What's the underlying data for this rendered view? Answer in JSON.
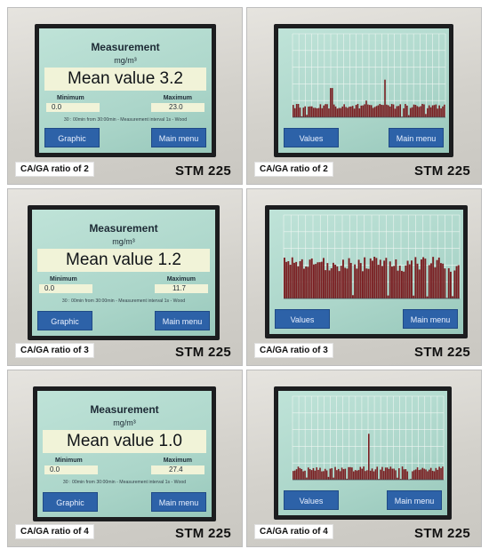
{
  "panels": [
    {
      "kind": "measurement",
      "title": "Measurement",
      "unit": "mg/m³",
      "mean": "Mean value 3.2",
      "min_label": "Minimum",
      "min_value": "0.0",
      "max_label": "Maximum",
      "max_value": "23.0",
      "info": "30 : 00min from 30:00min - Measurement interval 1s - Wood",
      "left_button": "Graphic",
      "right_button": "Main menu",
      "caption": "CA/GA ratio of 2",
      "model": "STM 225"
    },
    {
      "kind": "graph",
      "left_button": "Values",
      "right_button": "Main menu",
      "caption": "CA/GA ratio of 2",
      "model": "STM 225",
      "chart_data": {
        "type": "bar",
        "bar_levels": "low",
        "spike_positions": [
          0.25,
          0.48,
          0.6
        ],
        "spike_heights": [
          0.35,
          0.2,
          0.45
        ]
      }
    },
    {
      "kind": "measurement",
      "title": "Measurement",
      "unit": "mg/m³",
      "mean": "Mean value 1.2",
      "min_label": "Minimum",
      "min_value": "0.0",
      "max_label": "Maximum",
      "max_value": "11.7",
      "info": "30 : 00min from 30:00min - Measurement interval 1s - Wood",
      "left_button": "Graphic",
      "right_button": "Main menu",
      "caption": "CA/GA ratio of 3",
      "model": "STM 225"
    },
    {
      "kind": "graph",
      "left_button": "Values",
      "right_button": "Main menu",
      "caption": "CA/GA ratio of 3",
      "model": "STM 225",
      "chart_data": {
        "type": "bar",
        "bar_levels": "high",
        "spike_positions": [],
        "spike_heights": []
      }
    },
    {
      "kind": "measurement",
      "title": "Measurement",
      "unit": "mg/m³",
      "mean": "Mean value 1.0",
      "min_label": "Minimum",
      "min_value": "0.0",
      "max_label": "Maximum",
      "max_value": "27.4",
      "info": "30 : 00min from 30:00min - Measurement interval 1s - Wood",
      "left_button": "Graphic",
      "right_button": "Main menu",
      "caption": "CA/GA ratio of 4",
      "model": "STM 225"
    },
    {
      "kind": "graph",
      "left_button": "Values",
      "right_button": "Main menu",
      "caption": "CA/GA ratio of 4",
      "model": "STM 225",
      "chart_data": {
        "type": "bar",
        "bar_levels": "low",
        "spike_positions": [
          0.5
        ],
        "spike_heights": [
          0.55
        ]
      }
    }
  ],
  "colors": {
    "screen": "#acd6ca",
    "bars": "#7a1f22",
    "button": "#2d62a8",
    "display_box": "#f1f3d8"
  }
}
